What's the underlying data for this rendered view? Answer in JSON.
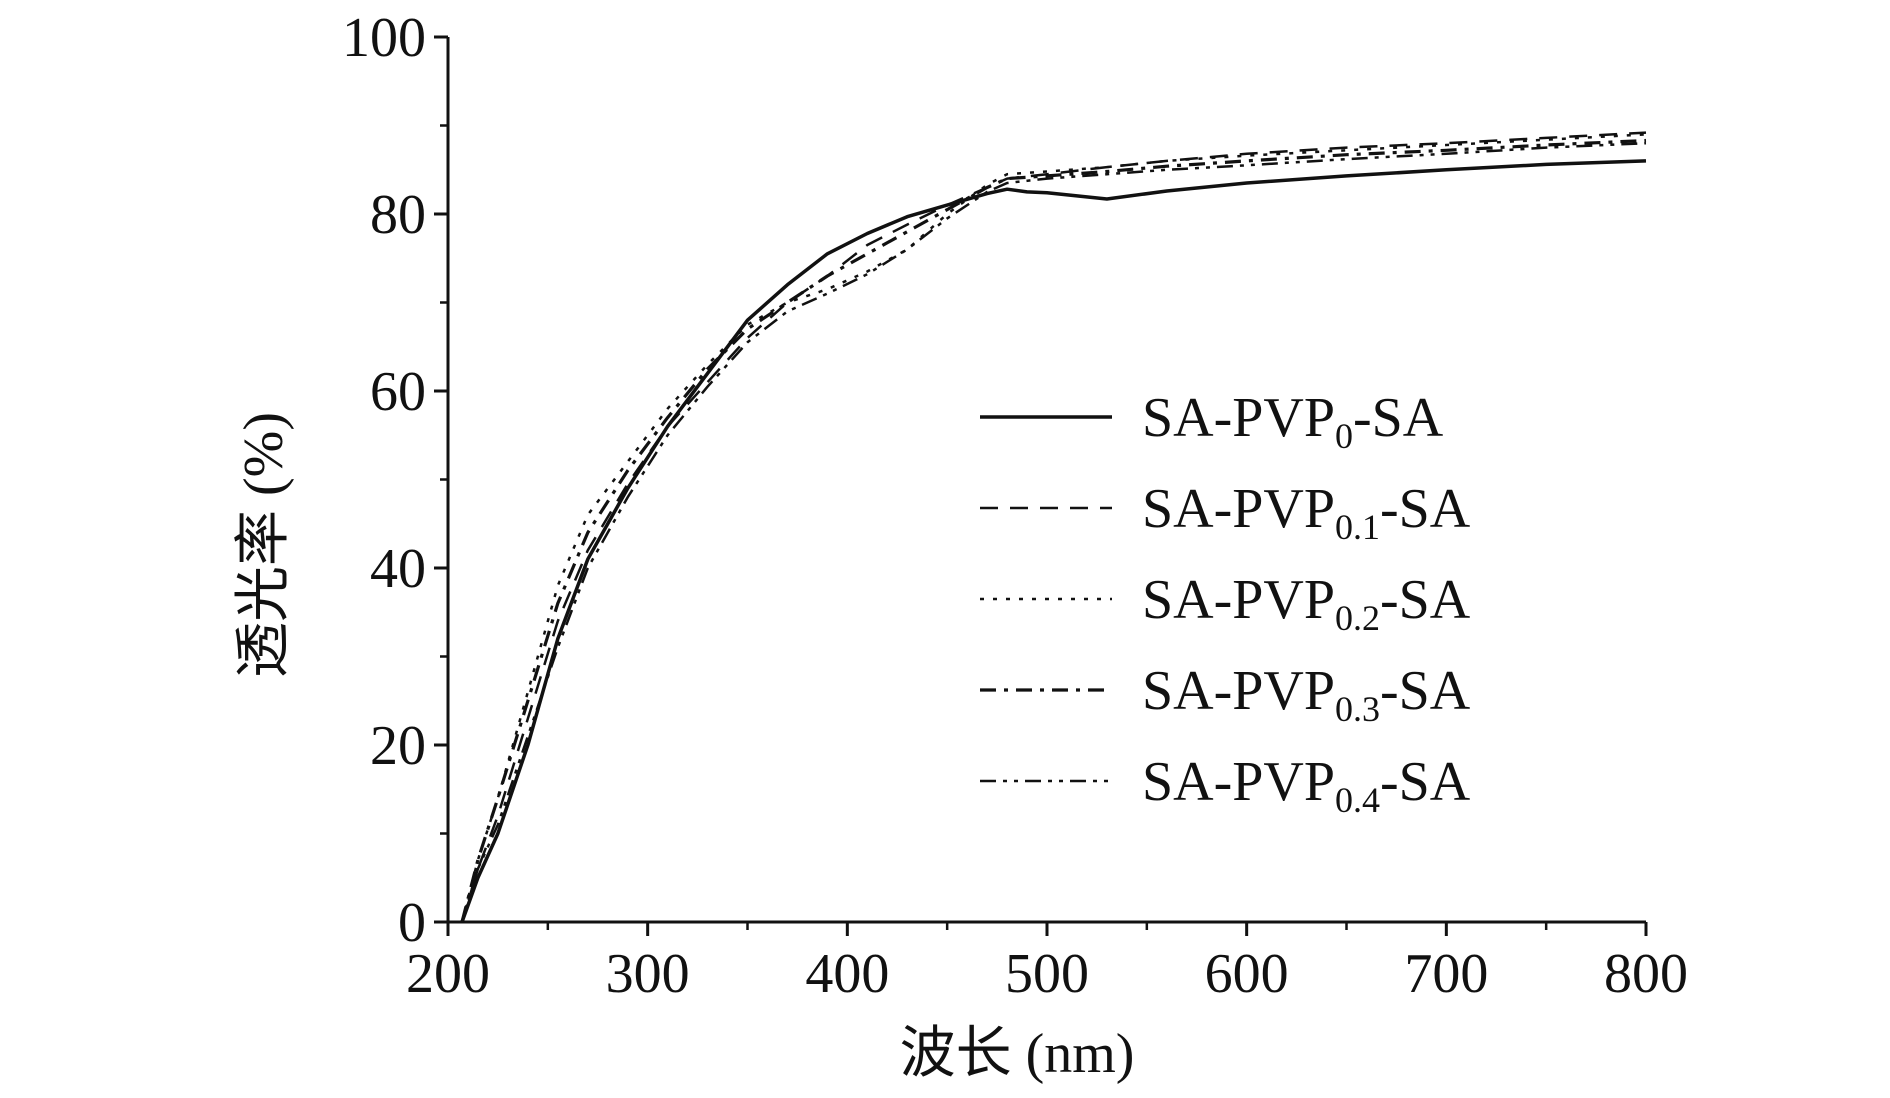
{
  "chart_data": {
    "type": "line",
    "xlabel": "波长 (nm)",
    "ylabel": "透光率 (%)",
    "xlim": [
      200,
      800
    ],
    "ylim": [
      0,
      100
    ],
    "xticks": [
      200,
      300,
      400,
      500,
      600,
      700,
      800
    ],
    "yticks": [
      0,
      20,
      40,
      60,
      80,
      100
    ],
    "grid": false,
    "legend_position": "right",
    "series": [
      {
        "name": "SA-PVP0-SA",
        "label_main": "SA-PVP",
        "label_sub": "0",
        "label_end": "-SA",
        "dash": "solid",
        "x": [
          207,
          215,
          225,
          240,
          255,
          270,
          290,
          310,
          330,
          350,
          370,
          390,
          410,
          430,
          450,
          470,
          480,
          490,
          500,
          530,
          560,
          600,
          650,
          700,
          750,
          800
        ],
        "y": [
          0,
          5,
          10,
          20,
          32,
          41,
          49,
          56,
          62,
          68,
          72,
          75.5,
          77.8,
          79.7,
          81,
          82.3,
          82.8,
          82.5,
          82.4,
          81.7,
          82.6,
          83.5,
          84.3,
          85,
          85.6,
          86
        ]
      },
      {
        "name": "SA-PVP0.1-SA",
        "label_main": "SA-PVP",
        "label_sub": "0.1",
        "label_end": "-SA",
        "dash": "dashed",
        "x": [
          207,
          215,
          225,
          240,
          255,
          270,
          290,
          310,
          330,
          350,
          370,
          390,
          410,
          430,
          450,
          470,
          480,
          500,
          530,
          560,
          600,
          650,
          700,
          750,
          800
        ],
        "y": [
          0,
          6,
          12,
          23,
          34,
          42,
          49.5,
          56,
          61,
          66,
          70,
          73,
          76.5,
          78.8,
          81,
          83,
          84,
          84.5,
          85.3,
          86,
          86.8,
          87.5,
          88,
          88.6,
          89.2
        ]
      },
      {
        "name": "SA-PVP0.2-SA",
        "label_main": "SA-PVP",
        "label_sub": "0.2",
        "label_end": "-SA",
        "dash": "dotted",
        "x": [
          207,
          215,
          225,
          240,
          255,
          270,
          290,
          310,
          330,
          350,
          370,
          390,
          410,
          430,
          450,
          470,
          480,
          500,
          530,
          560,
          600,
          650,
          700,
          750,
          800
        ],
        "y": [
          0,
          7,
          14,
          26,
          38,
          46,
          52,
          58,
          63,
          67.5,
          70,
          71.5,
          73.5,
          76,
          80,
          83.3,
          84.5,
          84.8,
          85.3,
          86,
          86.6,
          87.2,
          87.8,
          88.4,
          89
        ]
      },
      {
        "name": "SA-PVP0.3-SA",
        "label_main": "SA-PVP",
        "label_sub": "0.3",
        "label_end": "-SA",
        "dash": "dashdot",
        "x": [
          207,
          215,
          225,
          240,
          255,
          270,
          290,
          310,
          330,
          350,
          370,
          390,
          410,
          430,
          450,
          470,
          480,
          500,
          530,
          560,
          600,
          650,
          700,
          750,
          800
        ],
        "y": [
          0,
          7,
          14,
          25,
          36,
          44,
          51,
          57,
          62.5,
          67,
          70,
          73,
          75.5,
          78,
          80.5,
          83,
          84,
          84.3,
          84.8,
          85.4,
          86,
          86.7,
          87.2,
          87.8,
          88.3
        ]
      },
      {
        "name": "SA-PVP0.4-SA",
        "label_main": "SA-PVP",
        "label_sub": "0.4",
        "label_end": "-SA",
        "dash": "dashdotdot",
        "x": [
          207,
          215,
          225,
          240,
          255,
          270,
          290,
          310,
          330,
          350,
          370,
          390,
          410,
          430,
          450,
          470,
          480,
          500,
          530,
          560,
          600,
          650,
          700,
          750,
          800
        ],
        "y": [
          0,
          6,
          11,
          21,
          31,
          40,
          48,
          55,
          60.5,
          65.5,
          69,
          71,
          73.2,
          76,
          79.5,
          82.5,
          83.5,
          84,
          84.5,
          85,
          85.5,
          86.2,
          86.8,
          87.5,
          88
        ]
      }
    ]
  }
}
